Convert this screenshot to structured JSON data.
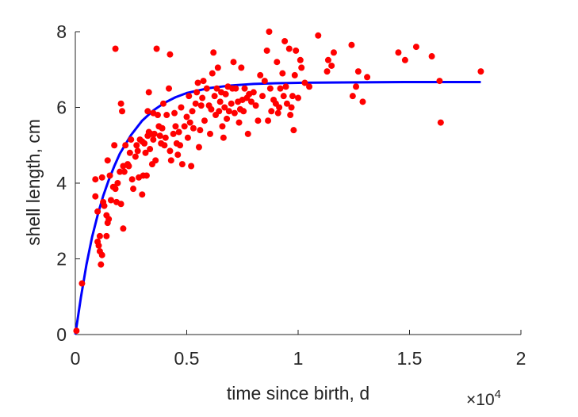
{
  "chart_data": {
    "type": "scatter",
    "title": "",
    "xlabel": "time since birth, d",
    "ylabel": "shell length, cm",
    "x_exponent_label": "×10",
    "x_exponent_power": "4",
    "xlim": [
      0,
      2
    ],
    "ylim": [
      0,
      8
    ],
    "x_ticks": [
      0,
      0.5,
      1,
      1.5,
      2
    ],
    "x_tick_labels": [
      "0",
      "0.5",
      "1",
      "1.5",
      "2"
    ],
    "y_ticks": [
      0,
      2,
      4,
      6,
      8
    ],
    "y_tick_labels": [
      "0",
      "2",
      "4",
      "6",
      "8"
    ],
    "grid": false,
    "x_units_note": "x values in units of 10^4 days (as shown by axis multiplier)",
    "series": [
      {
        "kind": "scatter",
        "color": "#ff0000",
        "points": [
          [
            0.005,
            0.1
          ],
          [
            0.03,
            1.35
          ],
          [
            0.09,
            3.65
          ],
          [
            0.09,
            4.1
          ],
          [
            0.1,
            3.25
          ],
          [
            0.1,
            2.45
          ],
          [
            0.105,
            2.35
          ],
          [
            0.11,
            2.2
          ],
          [
            0.11,
            2.6
          ],
          [
            0.12,
            2.1
          ],
          [
            0.115,
            1.85
          ],
          [
            0.12,
            4.15
          ],
          [
            0.125,
            3.5
          ],
          [
            0.13,
            3.4
          ],
          [
            0.14,
            3.15
          ],
          [
            0.145,
            2.95
          ],
          [
            0.14,
            2.6
          ],
          [
            0.145,
            4.6
          ],
          [
            0.15,
            3.05
          ],
          [
            0.155,
            4.2
          ],
          [
            0.16,
            3.55
          ],
          [
            0.17,
            3.9
          ],
          [
            0.175,
            5.0
          ],
          [
            0.18,
            3.85
          ],
          [
            0.18,
            7.55
          ],
          [
            0.185,
            3.5
          ],
          [
            0.19,
            4.0
          ],
          [
            0.2,
            4.3
          ],
          [
            0.205,
            3.45
          ],
          [
            0.205,
            6.1
          ],
          [
            0.21,
            5.9
          ],
          [
            0.215,
            2.8
          ],
          [
            0.215,
            4.45
          ],
          [
            0.22,
            4.3
          ],
          [
            0.225,
            5.0
          ],
          [
            0.235,
            4.5
          ],
          [
            0.24,
            4.45
          ],
          [
            0.245,
            4.8
          ],
          [
            0.25,
            5.15
          ],
          [
            0.255,
            4.1
          ],
          [
            0.26,
            3.85
          ],
          [
            0.27,
            4.7
          ],
          [
            0.275,
            5.0
          ],
          [
            0.28,
            4.85
          ],
          [
            0.285,
            4.15
          ],
          [
            0.29,
            5.15
          ],
          [
            0.3,
            3.7
          ],
          [
            0.3,
            5.1
          ],
          [
            0.305,
            4.2
          ],
          [
            0.31,
            5.05
          ],
          [
            0.315,
            4.8
          ],
          [
            0.32,
            4.2
          ],
          [
            0.325,
            5.25
          ],
          [
            0.325,
            5.9
          ],
          [
            0.33,
            5.35
          ],
          [
            0.33,
            6.4
          ],
          [
            0.335,
            4.9
          ],
          [
            0.34,
            5.3
          ],
          [
            0.345,
            4.5
          ],
          [
            0.35,
            5.15
          ],
          [
            0.35,
            5.85
          ],
          [
            0.355,
            5.3
          ],
          [
            0.36,
            4.6
          ],
          [
            0.365,
            7.55
          ],
          [
            0.37,
            5.8
          ],
          [
            0.375,
            5.5
          ],
          [
            0.38,
            5.25
          ],
          [
            0.385,
            5.05
          ],
          [
            0.39,
            5.45
          ],
          [
            0.395,
            6.1
          ],
          [
            0.4,
            5.0
          ],
          [
            0.405,
            5.2
          ],
          [
            0.41,
            5.8
          ],
          [
            0.42,
            6.5
          ],
          [
            0.425,
            4.85
          ],
          [
            0.425,
            7.4
          ],
          [
            0.43,
            4.6
          ],
          [
            0.44,
            5.3
          ],
          [
            0.445,
            5.85
          ],
          [
            0.45,
            5.5
          ],
          [
            0.455,
            5.05
          ],
          [
            0.46,
            4.75
          ],
          [
            0.465,
            5.35
          ],
          [
            0.47,
            5.0
          ],
          [
            0.475,
            6.0
          ],
          [
            0.48,
            4.5
          ],
          [
            0.49,
            5.5
          ],
          [
            0.5,
            5.75
          ],
          [
            0.505,
            5.2
          ],
          [
            0.51,
            6.3
          ],
          [
            0.515,
            5.6
          ],
          [
            0.52,
            4.45
          ],
          [
            0.525,
            5.9
          ],
          [
            0.53,
            5.45
          ],
          [
            0.54,
            6.1
          ],
          [
            0.545,
            6.4
          ],
          [
            0.55,
            6.65
          ],
          [
            0.555,
            4.95
          ],
          [
            0.56,
            5.4
          ],
          [
            0.565,
            6.05
          ],
          [
            0.57,
            6.25
          ],
          [
            0.575,
            6.7
          ],
          [
            0.58,
            5.65
          ],
          [
            0.59,
            6.5
          ],
          [
            0.6,
            6.05
          ],
          [
            0.605,
            5.3
          ],
          [
            0.61,
            5.95
          ],
          [
            0.615,
            6.9
          ],
          [
            0.62,
            7.45
          ],
          [
            0.625,
            6.3
          ],
          [
            0.63,
            5.8
          ],
          [
            0.635,
            6.5
          ],
          [
            0.64,
            7.05
          ],
          [
            0.645,
            5.9
          ],
          [
            0.65,
            6.15
          ],
          [
            0.655,
            6.4
          ],
          [
            0.66,
            5.5
          ],
          [
            0.665,
            5.2
          ],
          [
            0.67,
            6.0
          ],
          [
            0.675,
            6.35
          ],
          [
            0.68,
            5.7
          ],
          [
            0.685,
            6.55
          ],
          [
            0.69,
            5.9
          ],
          [
            0.7,
            6.1
          ],
          [
            0.705,
            6.5
          ],
          [
            0.71,
            7.2
          ],
          [
            0.715,
            5.85
          ],
          [
            0.72,
            6.5
          ],
          [
            0.73,
            6.15
          ],
          [
            0.735,
            5.6
          ],
          [
            0.74,
            5.95
          ],
          [
            0.745,
            7.05
          ],
          [
            0.75,
            6.2
          ],
          [
            0.755,
            5.9
          ],
          [
            0.76,
            6.5
          ],
          [
            0.77,
            6.25
          ],
          [
            0.775,
            5.3
          ],
          [
            0.78,
            6.35
          ],
          [
            0.79,
            6.15
          ],
          [
            0.8,
            6.4
          ],
          [
            0.81,
            6.05
          ],
          [
            0.82,
            5.65
          ],
          [
            0.83,
            6.85
          ],
          [
            0.84,
            6.3
          ],
          [
            0.85,
            6.7
          ],
          [
            0.86,
            7.5
          ],
          [
            0.865,
            5.65
          ],
          [
            0.87,
            8.0
          ],
          [
            0.875,
            6.5
          ],
          [
            0.88,
            5.9
          ],
          [
            0.89,
            6.2
          ],
          [
            0.9,
            6.1
          ],
          [
            0.905,
            7.2
          ],
          [
            0.91,
            5.85
          ],
          [
            0.915,
            6.0
          ],
          [
            0.92,
            6.5
          ],
          [
            0.93,
            6.9
          ],
          [
            0.935,
            6.3
          ],
          [
            0.94,
            7.75
          ],
          [
            0.945,
            6.55
          ],
          [
            0.95,
            6.1
          ],
          [
            0.96,
            7.55
          ],
          [
            0.965,
            5.8
          ],
          [
            0.97,
            6.0
          ],
          [
            0.975,
            6.3
          ],
          [
            0.98,
            5.4
          ],
          [
            0.985,
            6.85
          ],
          [
            0.99,
            7.5
          ],
          [
            1.0,
            6.25
          ],
          [
            1.01,
            7.25
          ],
          [
            1.015,
            7.05
          ],
          [
            1.03,
            6.65
          ],
          [
            1.05,
            6.55
          ],
          [
            1.09,
            7.9
          ],
          [
            1.13,
            6.95
          ],
          [
            1.135,
            7.25
          ],
          [
            1.15,
            7.1
          ],
          [
            1.16,
            7.45
          ],
          [
            1.24,
            7.65
          ],
          [
            1.245,
            6.3
          ],
          [
            1.26,
            6.55
          ],
          [
            1.27,
            6.95
          ],
          [
            1.29,
            6.15
          ],
          [
            1.31,
            6.8
          ],
          [
            1.45,
            7.45
          ],
          [
            1.48,
            7.25
          ],
          [
            1.53,
            7.6
          ],
          [
            1.6,
            7.35
          ],
          [
            1.635,
            6.7
          ],
          [
            1.64,
            5.6
          ],
          [
            1.82,
            6.95
          ]
        ]
      },
      {
        "kind": "line",
        "color": "#0000ff",
        "description": "fitted curve",
        "points": [
          [
            0,
            0
          ],
          [
            0.025,
            0.98
          ],
          [
            0.05,
            1.85
          ],
          [
            0.075,
            2.57
          ],
          [
            0.1,
            3.15
          ],
          [
            0.125,
            3.66
          ],
          [
            0.15,
            4.08
          ],
          [
            0.175,
            4.45
          ],
          [
            0.2,
            4.78
          ],
          [
            0.25,
            5.27
          ],
          [
            0.3,
            5.65
          ],
          [
            0.35,
            5.92
          ],
          [
            0.4,
            6.12
          ],
          [
            0.45,
            6.27
          ],
          [
            0.5,
            6.38
          ],
          [
            0.6,
            6.51
          ],
          [
            0.7,
            6.58
          ],
          [
            0.8,
            6.62
          ],
          [
            0.9,
            6.64
          ],
          [
            1.0,
            6.65
          ],
          [
            1.2,
            6.66
          ],
          [
            1.5,
            6.67
          ],
          [
            1.82,
            6.67
          ]
        ]
      }
    ]
  }
}
